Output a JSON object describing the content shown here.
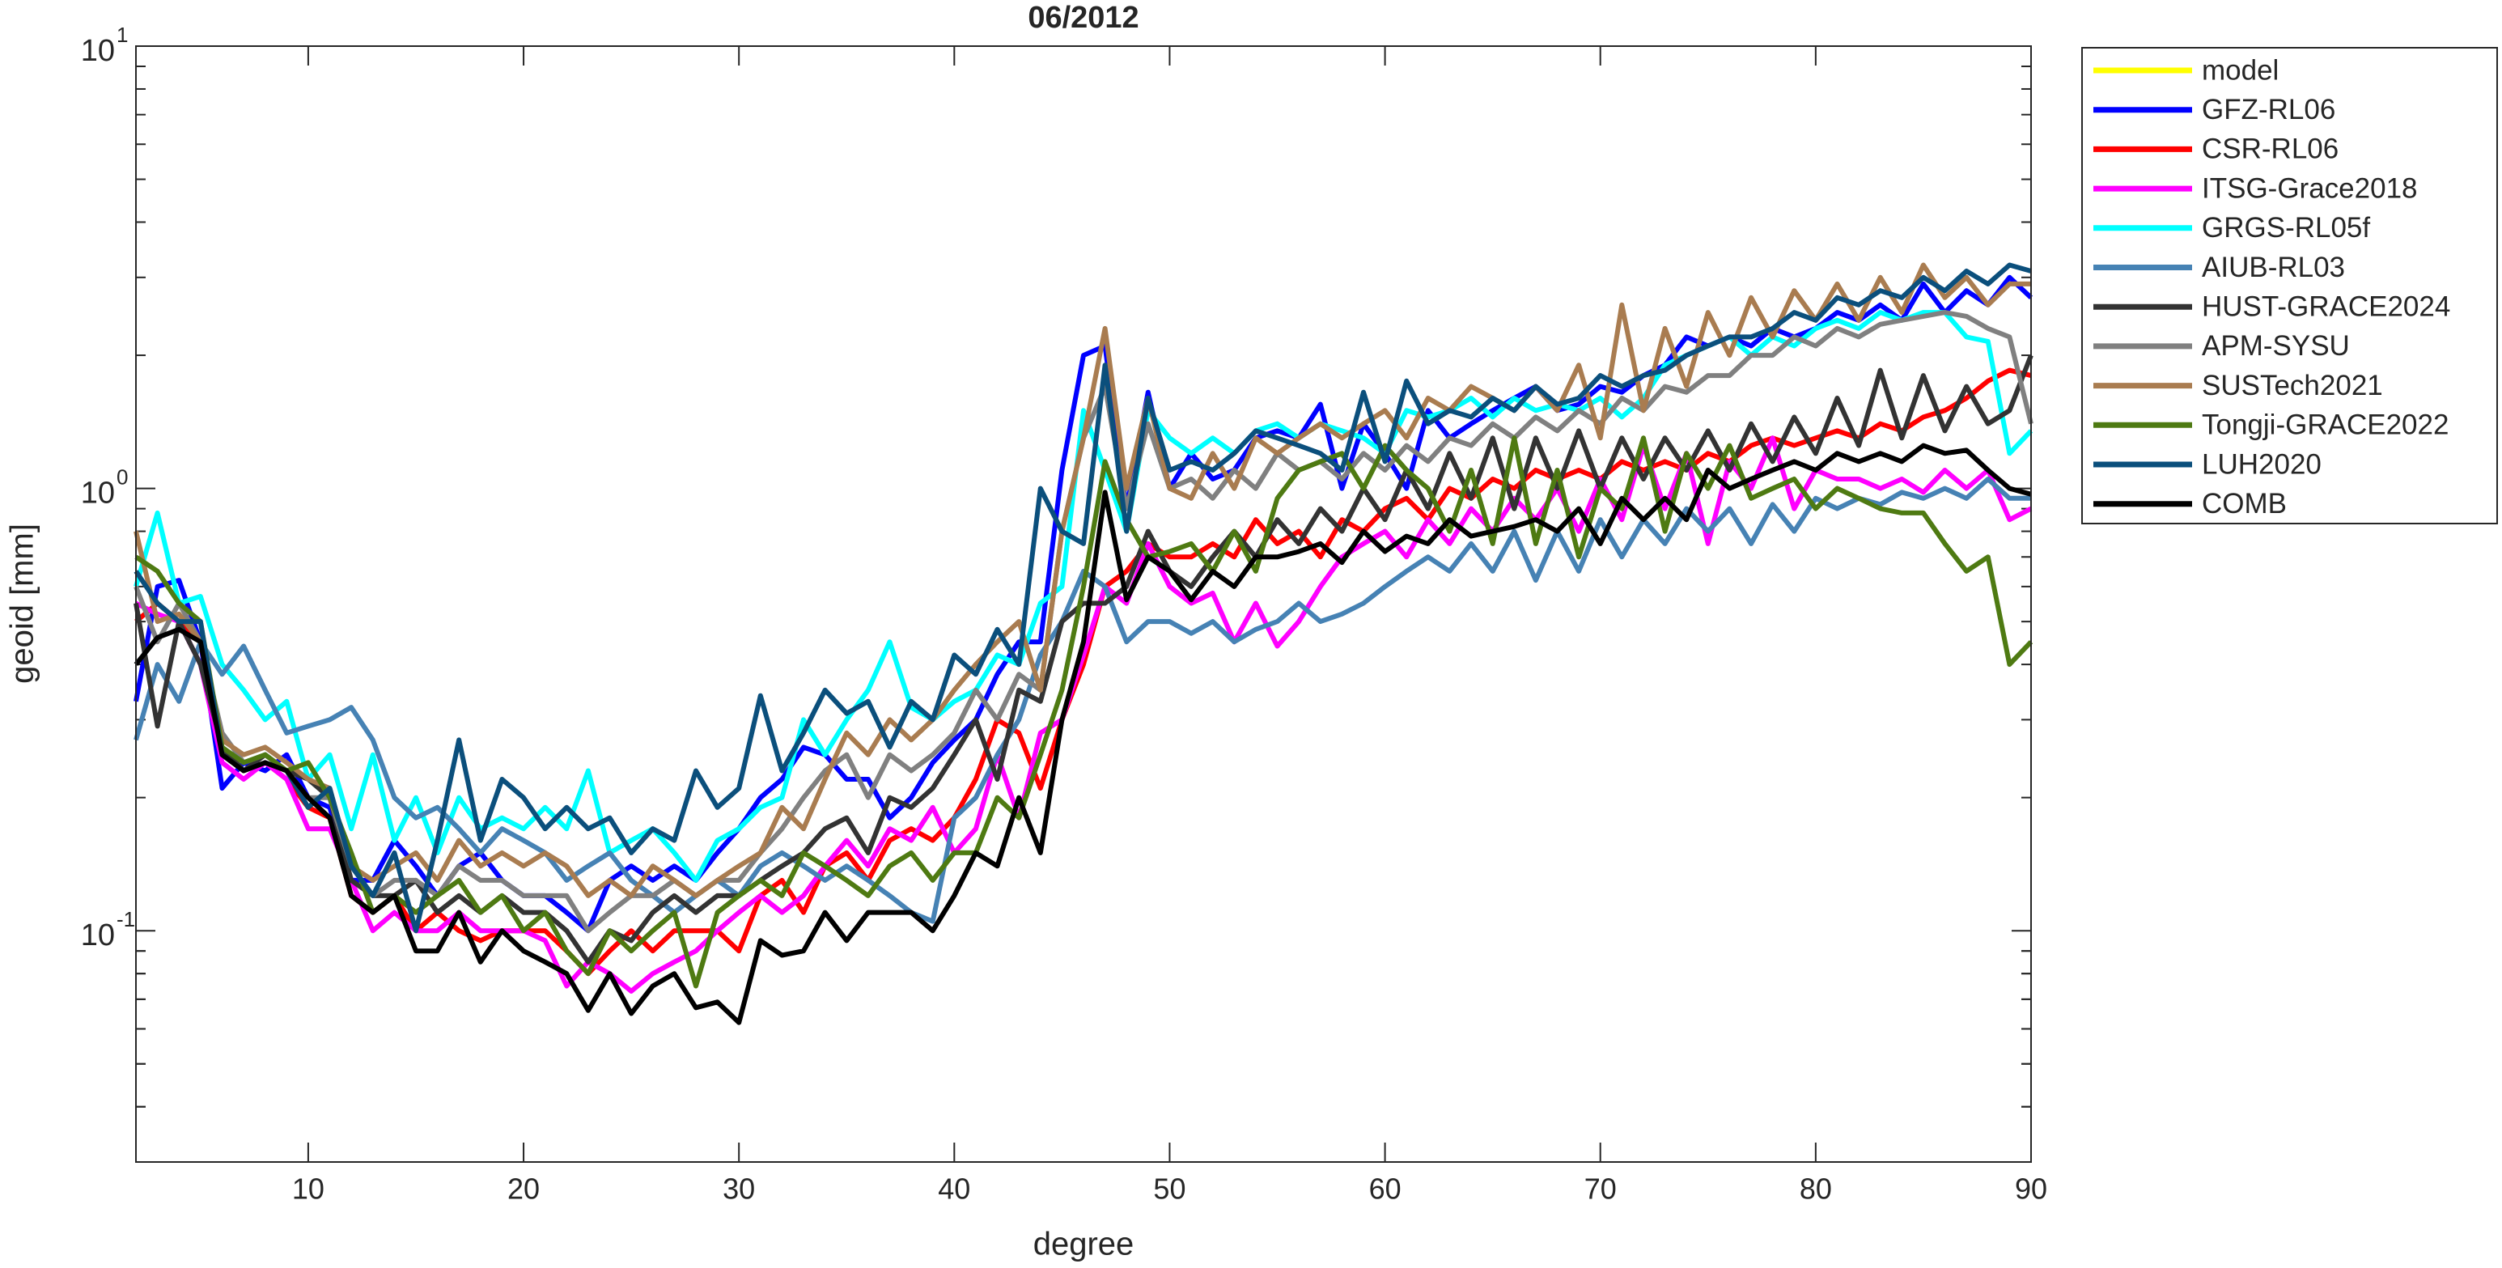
{
  "chart_data": {
    "type": "line",
    "title": "06/2012",
    "x_label": "degree",
    "y_label": "geoid [mm]",
    "log_y": true,
    "grid": false,
    "legend": "outside-right-top",
    "xlim": [
      2,
      90
    ],
    "xticks": [
      10,
      20,
      30,
      40,
      50,
      60,
      70,
      80,
      90
    ],
    "ylim": [
      0.03,
      10
    ],
    "yticks": [
      {
        "value": 0.1,
        "label": "10",
        "exponent": "-1"
      },
      {
        "value": 1,
        "label": "10",
        "exponent": "0"
      },
      {
        "value": 10,
        "label": "10",
        "exponent": "1"
      }
    ],
    "x": [
      2,
      3,
      4,
      5,
      6,
      7,
      8,
      9,
      10,
      11,
      12,
      13,
      14,
      15,
      16,
      17,
      18,
      19,
      20,
      21,
      22,
      23,
      24,
      25,
      26,
      27,
      28,
      29,
      30,
      31,
      32,
      33,
      34,
      35,
      36,
      37,
      38,
      39,
      40,
      41,
      42,
      43,
      44,
      45,
      46,
      47,
      48,
      49,
      50,
      51,
      52,
      53,
      54,
      55,
      56,
      57,
      58,
      59,
      60,
      61,
      62,
      63,
      64,
      65,
      66,
      67,
      68,
      69,
      70,
      71,
      72,
      73,
      74,
      75,
      76,
      77,
      78,
      79,
      80,
      81,
      82,
      83,
      84,
      85,
      86,
      87,
      88,
      89,
      90
    ],
    "series": [
      {
        "name": "model",
        "color": "#ffff00",
        "values": [
          null,
          null,
          null,
          null,
          null,
          null,
          null,
          null,
          null,
          null,
          null,
          null,
          null,
          null,
          null,
          null,
          null,
          null,
          null,
          null,
          null,
          null,
          null,
          null,
          null,
          null,
          null,
          null,
          null,
          null,
          null,
          null,
          null,
          null,
          null,
          null,
          null,
          null,
          null,
          null,
          null,
          null,
          null,
          null,
          null,
          null,
          null,
          null,
          null,
          null,
          null,
          null,
          null,
          null,
          null,
          null,
          null,
          null,
          null,
          null,
          null,
          null,
          null,
          null,
          null,
          null,
          null,
          null,
          null,
          null,
          null,
          null,
          null,
          null,
          null,
          null,
          null,
          null,
          null,
          null,
          null,
          null,
          null,
          null,
          null,
          null,
          null,
          null,
          null
        ]
      },
      {
        "name": "GFZ-RL06",
        "color": "#0000ff",
        "values": [
          0.33,
          0.6,
          0.62,
          0.45,
          0.21,
          0.24,
          0.23,
          0.25,
          0.2,
          0.19,
          0.13,
          0.13,
          0.16,
          0.14,
          0.12,
          0.14,
          0.15,
          0.13,
          0.12,
          0.12,
          0.11,
          0.1,
          0.13,
          0.14,
          0.13,
          0.14,
          0.13,
          0.15,
          0.17,
          0.2,
          0.22,
          0.26,
          0.25,
          0.22,
          0.22,
          0.18,
          0.2,
          0.24,
          0.27,
          0.3,
          0.38,
          0.45,
          0.45,
          1.1,
          2.0,
          2.1,
          0.9,
          1.65,
          1.0,
          1.2,
          1.05,
          1.1,
          1.3,
          1.35,
          1.3,
          1.55,
          1.0,
          1.4,
          1.2,
          1.0,
          1.5,
          1.3,
          1.4,
          1.5,
          1.6,
          1.7,
          1.5,
          1.55,
          1.7,
          1.65,
          1.8,
          1.9,
          2.2,
          2.1,
          2.2,
          2.1,
          2.3,
          2.2,
          2.3,
          2.5,
          2.4,
          2.6,
          2.4,
          2.9,
          2.5,
          2.8,
          2.6,
          3.0,
          2.7
        ]
      },
      {
        "name": "CSR-RL06",
        "color": "#ff0000",
        "values": [
          0.5,
          0.55,
          0.5,
          0.45,
          0.25,
          0.23,
          0.24,
          0.22,
          0.19,
          0.18,
          0.12,
          0.11,
          0.12,
          0.1,
          0.11,
          0.1,
          0.095,
          0.1,
          0.1,
          0.1,
          0.09,
          0.08,
          0.09,
          0.1,
          0.09,
          0.1,
          0.1,
          0.1,
          0.09,
          0.12,
          0.13,
          0.11,
          0.14,
          0.15,
          0.13,
          0.16,
          0.17,
          0.16,
          0.18,
          0.22,
          0.3,
          0.28,
          0.21,
          0.3,
          0.4,
          0.6,
          0.65,
          0.75,
          0.7,
          0.7,
          0.75,
          0.7,
          0.85,
          0.75,
          0.8,
          0.7,
          0.85,
          0.8,
          0.9,
          0.95,
          0.85,
          1.0,
          0.95,
          1.05,
          1.0,
          1.1,
          1.05,
          1.1,
          1.05,
          1.15,
          1.1,
          1.15,
          1.1,
          1.2,
          1.15,
          1.25,
          1.3,
          1.25,
          1.3,
          1.35,
          1.3,
          1.4,
          1.35,
          1.45,
          1.5,
          1.6,
          1.75,
          1.85,
          1.8
        ]
      },
      {
        "name": "ITSG-Grace2018",
        "color": "#ff00ff",
        "values": [
          0.55,
          0.52,
          0.5,
          0.4,
          0.24,
          0.22,
          0.24,
          0.22,
          0.17,
          0.17,
          0.13,
          0.1,
          0.11,
          0.1,
          0.1,
          0.11,
          0.1,
          0.1,
          0.1,
          0.095,
          0.075,
          0.085,
          0.08,
          0.073,
          0.08,
          0.085,
          0.09,
          0.1,
          0.11,
          0.12,
          0.11,
          0.12,
          0.14,
          0.16,
          0.14,
          0.17,
          0.16,
          0.19,
          0.15,
          0.17,
          0.25,
          0.18,
          0.28,
          0.3,
          0.42,
          0.6,
          0.55,
          0.75,
          0.6,
          0.55,
          0.58,
          0.45,
          0.55,
          0.44,
          0.5,
          0.6,
          0.7,
          0.75,
          0.8,
          0.7,
          0.85,
          0.75,
          0.9,
          0.8,
          0.95,
          0.85,
          1.0,
          0.8,
          1.05,
          0.85,
          1.25,
          0.9,
          1.2,
          0.75,
          1.15,
          1.0,
          1.3,
          0.9,
          1.1,
          1.05,
          1.05,
          1.0,
          1.05,
          0.98,
          1.1,
          1.0,
          1.1,
          0.85,
          0.9
        ]
      },
      {
        "name": "GRGS-RL05f",
        "color": "#00ffff",
        "values": [
          0.6,
          0.88,
          0.55,
          0.57,
          0.4,
          0.35,
          0.3,
          0.33,
          0.22,
          0.25,
          0.17,
          0.25,
          0.16,
          0.2,
          0.15,
          0.2,
          0.17,
          0.18,
          0.17,
          0.19,
          0.17,
          0.23,
          0.15,
          0.16,
          0.17,
          0.15,
          0.13,
          0.16,
          0.17,
          0.19,
          0.2,
          0.3,
          0.25,
          0.3,
          0.35,
          0.45,
          0.32,
          0.3,
          0.33,
          0.35,
          0.42,
          0.4,
          0.55,
          0.6,
          1.5,
          1.1,
          0.8,
          1.5,
          1.3,
          1.2,
          1.3,
          1.2,
          1.35,
          1.4,
          1.3,
          1.4,
          1.35,
          1.3,
          1.2,
          1.5,
          1.45,
          1.5,
          1.6,
          1.45,
          1.6,
          1.5,
          1.55,
          1.5,
          1.6,
          1.45,
          1.6,
          1.9,
          2.0,
          2.1,
          2.2,
          2.0,
          2.2,
          2.1,
          2.3,
          2.4,
          2.3,
          2.5,
          2.4,
          2.5,
          2.5,
          2.2,
          2.15,
          1.2,
          1.35
        ]
      },
      {
        "name": "AIUB-RL03",
        "color": "#4682b4",
        "values": [
          0.27,
          0.4,
          0.33,
          0.45,
          0.38,
          0.44,
          0.35,
          0.28,
          0.29,
          0.3,
          0.32,
          0.27,
          0.2,
          0.18,
          0.19,
          0.17,
          0.15,
          0.17,
          0.16,
          0.15,
          0.13,
          0.14,
          0.15,
          0.13,
          0.12,
          0.11,
          0.12,
          0.13,
          0.12,
          0.14,
          0.15,
          0.14,
          0.13,
          0.14,
          0.13,
          0.12,
          0.11,
          0.105,
          0.18,
          0.2,
          0.25,
          0.3,
          0.42,
          0.5,
          0.65,
          0.6,
          0.45,
          0.5,
          0.5,
          0.47,
          0.5,
          0.45,
          0.48,
          0.5,
          0.55,
          0.5,
          0.52,
          0.55,
          0.6,
          0.65,
          0.7,
          0.65,
          0.75,
          0.65,
          0.8,
          0.62,
          0.8,
          0.65,
          0.85,
          0.7,
          0.85,
          0.75,
          0.9,
          0.8,
          0.9,
          0.75,
          0.92,
          0.8,
          0.95,
          0.9,
          0.95,
          0.92,
          0.98,
          0.95,
          1.0,
          0.95,
          1.05,
          0.95,
          0.95
        ]
      },
      {
        "name": "HUST-GRACE2024",
        "color": "#333333",
        "values": [
          0.55,
          0.29,
          0.5,
          0.4,
          0.26,
          0.23,
          0.25,
          0.23,
          0.22,
          0.2,
          0.13,
          0.12,
          0.12,
          0.13,
          0.11,
          0.12,
          0.11,
          0.12,
          0.11,
          0.11,
          0.1,
          0.085,
          0.1,
          0.095,
          0.11,
          0.12,
          0.11,
          0.12,
          0.12,
          0.13,
          0.14,
          0.15,
          0.17,
          0.18,
          0.15,
          0.2,
          0.19,
          0.21,
          0.25,
          0.3,
          0.22,
          0.35,
          0.33,
          0.5,
          0.55,
          0.55,
          0.6,
          0.8,
          0.65,
          0.6,
          0.7,
          0.8,
          0.7,
          0.85,
          0.75,
          0.9,
          0.8,
          1.0,
          0.85,
          1.1,
          0.9,
          1.2,
          0.95,
          1.3,
          0.9,
          1.3,
          1.0,
          1.35,
          1.0,
          1.3,
          1.05,
          1.3,
          1.1,
          1.35,
          1.1,
          1.4,
          1.15,
          1.45,
          1.2,
          1.6,
          1.25,
          1.85,
          1.3,
          1.8,
          1.35,
          1.7,
          1.4,
          1.5,
          2.0
        ]
      },
      {
        "name": "APM-SYSU",
        "color": "#808080",
        "values": [
          0.6,
          0.45,
          0.55,
          0.45,
          0.28,
          0.24,
          0.25,
          0.23,
          0.2,
          0.2,
          0.14,
          0.12,
          0.13,
          0.13,
          0.12,
          0.14,
          0.13,
          0.13,
          0.12,
          0.12,
          0.12,
          0.1,
          0.11,
          0.12,
          0.12,
          0.13,
          0.12,
          0.13,
          0.13,
          0.15,
          0.17,
          0.2,
          0.23,
          0.25,
          0.2,
          0.25,
          0.23,
          0.25,
          0.28,
          0.35,
          0.3,
          0.38,
          0.35,
          0.8,
          1.3,
          1.7,
          0.9,
          1.4,
          1.0,
          1.05,
          0.95,
          1.1,
          1.0,
          1.2,
          1.1,
          1.15,
          1.05,
          1.2,
          1.1,
          1.25,
          1.15,
          1.3,
          1.25,
          1.4,
          1.3,
          1.45,
          1.35,
          1.5,
          1.4,
          1.6,
          1.5,
          1.7,
          1.65,
          1.8,
          1.8,
          2.0,
          2.0,
          2.2,
          2.1,
          2.3,
          2.2,
          2.35,
          2.4,
          2.45,
          2.5,
          2.45,
          2.3,
          2.2,
          1.4
        ]
      },
      {
        "name": "SUSTech2021",
        "color": "#a97c50",
        "values": [
          0.8,
          0.5,
          0.52,
          0.45,
          0.27,
          0.25,
          0.26,
          0.24,
          0.22,
          0.21,
          0.14,
          0.13,
          0.14,
          0.15,
          0.13,
          0.16,
          0.14,
          0.15,
          0.14,
          0.15,
          0.14,
          0.12,
          0.13,
          0.12,
          0.14,
          0.13,
          0.12,
          0.13,
          0.14,
          0.15,
          0.19,
          0.17,
          0.22,
          0.28,
          0.25,
          0.3,
          0.27,
          0.3,
          0.35,
          0.4,
          0.45,
          0.5,
          0.35,
          0.8,
          1.3,
          2.3,
          1.0,
          1.6,
          1.0,
          0.95,
          1.2,
          1.0,
          1.3,
          1.2,
          1.3,
          1.4,
          1.3,
          1.4,
          1.5,
          1.3,
          1.6,
          1.5,
          1.7,
          1.6,
          1.5,
          1.7,
          1.5,
          1.9,
          1.3,
          2.6,
          1.5,
          2.3,
          1.7,
          2.5,
          2.0,
          2.7,
          2.2,
          2.8,
          2.4,
          2.9,
          2.4,
          3.0,
          2.5,
          3.2,
          2.7,
          3.0,
          2.6,
          2.9,
          2.9
        ]
      },
      {
        "name": "Tongji-GRACE2022",
        "color": "#4e7a12",
        "values": [
          0.7,
          0.65,
          0.55,
          0.5,
          0.26,
          0.24,
          0.25,
          0.23,
          0.24,
          0.2,
          0.15,
          0.11,
          0.12,
          0.11,
          0.12,
          0.13,
          0.11,
          0.12,
          0.1,
          0.11,
          0.09,
          0.08,
          0.1,
          0.09,
          0.1,
          0.11,
          0.075,
          0.11,
          0.12,
          0.13,
          0.12,
          0.15,
          0.14,
          0.13,
          0.12,
          0.14,
          0.15,
          0.13,
          0.15,
          0.15,
          0.2,
          0.18,
          0.25,
          0.35,
          0.6,
          1.15,
          0.85,
          0.7,
          0.72,
          0.75,
          0.65,
          0.8,
          0.65,
          0.95,
          1.1,
          1.15,
          1.2,
          1.0,
          1.25,
          1.1,
          1.0,
          0.8,
          1.1,
          0.75,
          1.3,
          0.75,
          1.1,
          0.7,
          1.0,
          0.9,
          1.3,
          0.8,
          1.2,
          1.0,
          1.25,
          0.95,
          1.0,
          1.05,
          0.9,
          1.0,
          0.95,
          0.9,
          0.88,
          0.88,
          0.75,
          0.65,
          0.7,
          0.4,
          0.45
        ]
      },
      {
        "name": "LUH2020",
        "color": "#0b4f7c",
        "values": [
          0.65,
          0.55,
          0.5,
          0.5,
          0.25,
          0.23,
          0.24,
          0.23,
          0.19,
          0.21,
          0.14,
          0.12,
          0.15,
          0.1,
          0.16,
          0.27,
          0.16,
          0.22,
          0.2,
          0.17,
          0.19,
          0.17,
          0.18,
          0.15,
          0.17,
          0.16,
          0.23,
          0.19,
          0.21,
          0.34,
          0.23,
          0.28,
          0.35,
          0.31,
          0.33,
          0.26,
          0.33,
          0.3,
          0.42,
          0.38,
          0.48,
          0.4,
          1.0,
          0.8,
          0.75,
          1.9,
          0.8,
          1.6,
          1.1,
          1.15,
          1.1,
          1.2,
          1.35,
          1.3,
          1.25,
          1.2,
          1.1,
          1.65,
          1.15,
          1.75,
          1.4,
          1.5,
          1.45,
          1.6,
          1.5,
          1.7,
          1.55,
          1.6,
          1.8,
          1.7,
          1.8,
          1.85,
          2.0,
          2.1,
          2.2,
          2.2,
          2.3,
          2.5,
          2.4,
          2.7,
          2.6,
          2.8,
          2.7,
          3.0,
          2.8,
          3.1,
          2.9,
          3.2,
          3.1
        ]
      },
      {
        "name": "COMB",
        "color": "#000000",
        "values": [
          0.4,
          0.46,
          0.48,
          0.45,
          0.25,
          0.23,
          0.24,
          0.23,
          0.2,
          0.18,
          0.12,
          0.11,
          0.12,
          0.09,
          0.09,
          0.11,
          0.085,
          0.1,
          0.09,
          0.085,
          0.08,
          0.066,
          0.08,
          0.065,
          0.075,
          0.08,
          0.067,
          0.069,
          0.062,
          0.095,
          0.088,
          0.09,
          0.11,
          0.095,
          0.11,
          0.11,
          0.11,
          0.1,
          0.12,
          0.15,
          0.14,
          0.2,
          0.15,
          0.3,
          0.45,
          0.98,
          0.56,
          0.7,
          0.65,
          0.56,
          0.65,
          0.6,
          0.7,
          0.7,
          0.72,
          0.75,
          0.68,
          0.8,
          0.72,
          0.78,
          0.75,
          0.85,
          0.78,
          0.8,
          0.82,
          0.85,
          0.8,
          0.9,
          0.75,
          0.95,
          0.85,
          0.95,
          0.85,
          1.1,
          1.0,
          1.05,
          1.1,
          1.15,
          1.1,
          1.2,
          1.15,
          1.2,
          1.15,
          1.25,
          1.2,
          1.22,
          1.1,
          1.0,
          0.97
        ]
      }
    ]
  }
}
